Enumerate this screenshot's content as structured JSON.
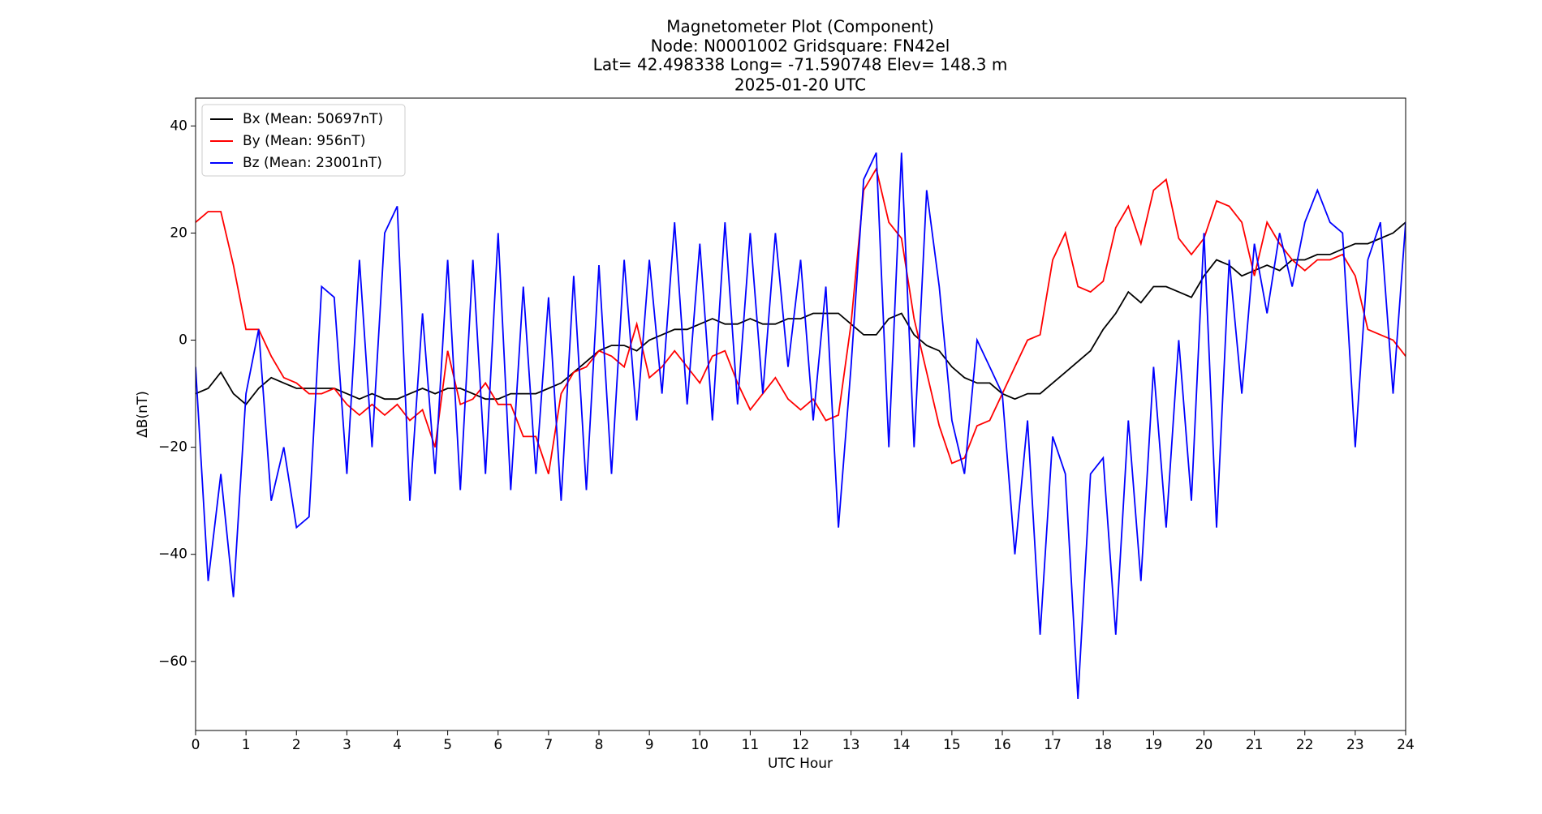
{
  "chart_data": {
    "type": "line",
    "title": "Magnetometer Plot (Component)",
    "subtitle": [
      "Node:  N0001002     Gridsquare:  FN42el",
      "Lat= 42.498338    Long= -71.590748    Elev= 148.3 m",
      "2025-01-20  UTC"
    ],
    "x_label": "UTC Hour",
    "y_label": "ΔB(nT)",
    "legend": "upper left",
    "xlim": [
      0,
      24
    ],
    "xticks": [
      0,
      1,
      2,
      3,
      4,
      5,
      6,
      7,
      8,
      9,
      10,
      11,
      12,
      13,
      14,
      15,
      16,
      17,
      18,
      19,
      20,
      21,
      22,
      23,
      24
    ],
    "ylim": [
      -72.9,
      45.2
    ],
    "yticks": [
      {
        "value": -60,
        "label": "−60"
      },
      {
        "value": -40,
        "label": "−40"
      },
      {
        "value": -20,
        "label": "−20"
      },
      0,
      20,
      40
    ],
    "x": [
      0,
      0.25,
      0.5,
      0.75,
      1,
      1.25,
      1.5,
      1.75,
      2,
      2.25,
      2.5,
      2.75,
      3,
      3.25,
      3.5,
      3.75,
      4,
      4.25,
      4.5,
      4.75,
      5,
      5.25,
      5.5,
      5.75,
      6,
      6.25,
      6.5,
      6.75,
      7,
      7.25,
      7.5,
      7.75,
      8,
      8.25,
      8.5,
      8.75,
      9,
      9.25,
      9.5,
      9.75,
      10,
      10.25,
      10.5,
      10.75,
      11,
      11.25,
      11.5,
      11.75,
      12,
      12.25,
      12.5,
      12.75,
      13,
      13.25,
      13.5,
      13.75,
      14,
      14.25,
      14.5,
      14.75,
      15,
      15.25,
      15.5,
      15.75,
      16,
      16.25,
      16.5,
      16.75,
      17,
      17.25,
      17.5,
      17.75,
      18,
      18.25,
      18.5,
      18.75,
      19,
      19.25,
      19.5,
      19.75,
      20,
      20.25,
      20.5,
      20.75,
      21,
      21.25,
      21.5,
      21.75,
      22,
      22.25,
      22.5,
      22.75,
      23,
      23.25,
      23.5,
      23.75,
      24
    ],
    "series": [
      {
        "name": "Bx (Mean: 50697nT)",
        "color": "#000000",
        "values": [
          -10,
          -9,
          -6,
          -10,
          -12,
          -9,
          -7,
          -8,
          -9,
          -9,
          -9,
          -9,
          -10,
          -11,
          -10,
          -11,
          -11,
          -10,
          -9,
          -10,
          -9,
          -9,
          -10,
          -11,
          -11,
          -10,
          -10,
          -10,
          -9,
          -8,
          -6,
          -4,
          -2,
          -1,
          -1,
          -2,
          0,
          1,
          2,
          2,
          3,
          4,
          3,
          3,
          4,
          3,
          3,
          4,
          4,
          5,
          5,
          5,
          3,
          1,
          1,
          4,
          5,
          1,
          -1,
          -2,
          -5,
          -7,
          -8,
          -8,
          -10,
          -11,
          -10,
          -10,
          -8,
          -6,
          -4,
          -2,
          2,
          5,
          9,
          7,
          10,
          10,
          9,
          8,
          12,
          15,
          14,
          12,
          13,
          14,
          13,
          15,
          15,
          16,
          16,
          17,
          18,
          18,
          19,
          20,
          22
        ]
      },
      {
        "name": "By (Mean: 956nT)",
        "color": "#ff0000",
        "values": [
          22,
          24,
          24,
          14,
          2,
          2,
          -3,
          -7,
          -8,
          -10,
          -10,
          -9,
          -12,
          -14,
          -12,
          -14,
          -12,
          -15,
          -13,
          -20,
          -2,
          -12,
          -11,
          -8,
          -12,
          -12,
          -18,
          -18,
          -25,
          -10,
          -6,
          -5,
          -2,
          -3,
          -5,
          3,
          -7,
          -5,
          -2,
          -5,
          -8,
          -3,
          -2,
          -8,
          -13,
          -10,
          -7,
          -11,
          -13,
          -11,
          -15,
          -14,
          3,
          28,
          32,
          22,
          19,
          4,
          -6,
          -16,
          -23,
          -22,
          -16,
          -15,
          -10,
          -5,
          0,
          1,
          15,
          20,
          10,
          9,
          11,
          21,
          25,
          18,
          28,
          30,
          19,
          16,
          19,
          26,
          25,
          22,
          12,
          22,
          18,
          15,
          13,
          15,
          15,
          16,
          12,
          2,
          1,
          0,
          -3
        ]
      },
      {
        "name": "Bz (Mean: 23001nT)",
        "color": "#0000ff",
        "values": [
          -5,
          -45,
          -25,
          -48,
          -10,
          2,
          -30,
          -20,
          -35,
          -33,
          10,
          8,
          -25,
          15,
          -20,
          20,
          25,
          -30,
          5,
          -25,
          15,
          -28,
          15,
          -25,
          20,
          -28,
          10,
          -25,
          8,
          -30,
          12,
          -28,
          14,
          -25,
          15,
          -15,
          15,
          -10,
          22,
          -12,
          18,
          -15,
          22,
          -12,
          20,
          -10,
          20,
          -5,
          15,
          -15,
          10,
          -35,
          -5,
          30,
          35,
          -20,
          35,
          -20,
          28,
          10,
          -15,
          -25,
          0,
          -5,
          -10,
          -40,
          -15,
          -55,
          -18,
          -25,
          -67,
          -25,
          -22,
          -55,
          -15,
          -45,
          -5,
          -35,
          0,
          -30,
          20,
          -35,
          15,
          -10,
          18,
          5,
          20,
          10,
          22,
          28,
          22,
          20,
          -20,
          15,
          22,
          -10,
          22
        ]
      }
    ]
  }
}
